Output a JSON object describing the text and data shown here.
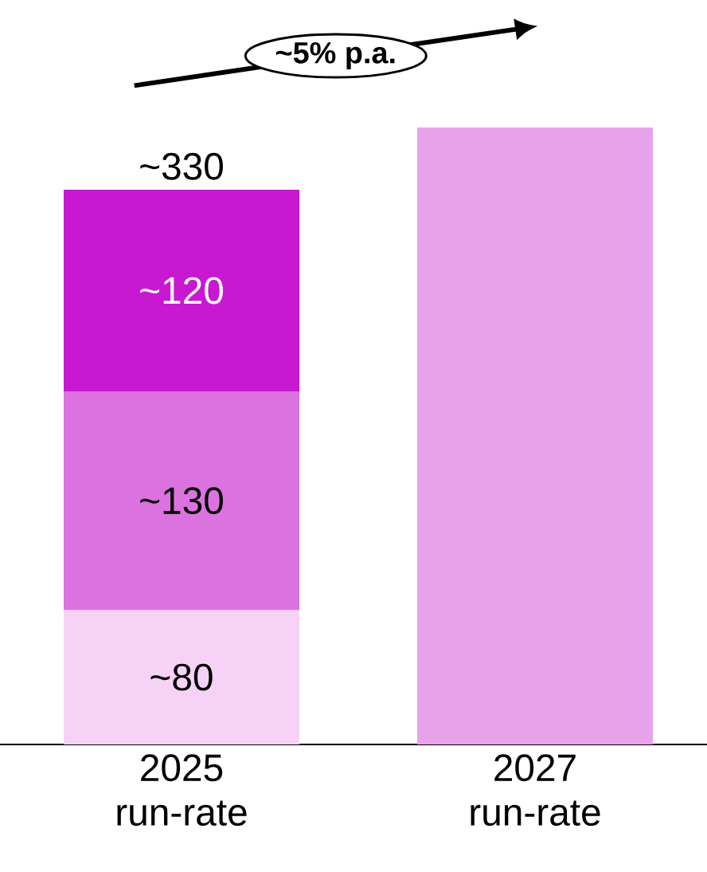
{
  "chart_data": {
    "type": "bar",
    "stacked": true,
    "categories": [
      "2025 run-rate",
      "2027 run-rate"
    ],
    "series": [
      {
        "colors": [
          "#f6d3f6",
          "#e8a2ea"
        ],
        "values": [
          80,
          367
        ],
        "value_labels": [
          "~80",
          null
        ]
      },
      {
        "color": "#dc72e0",
        "values": [
          130,
          null
        ],
        "value_labels": [
          "~130",
          null
        ]
      },
      {
        "color": "#c819d2",
        "values": [
          120,
          null
        ],
        "value_labels": [
          "~120",
          null
        ]
      }
    ],
    "totals": [
      "~330",
      null
    ],
    "annotations": [
      "~5% p.a."
    ],
    "tick_labels": "x"
  }
}
